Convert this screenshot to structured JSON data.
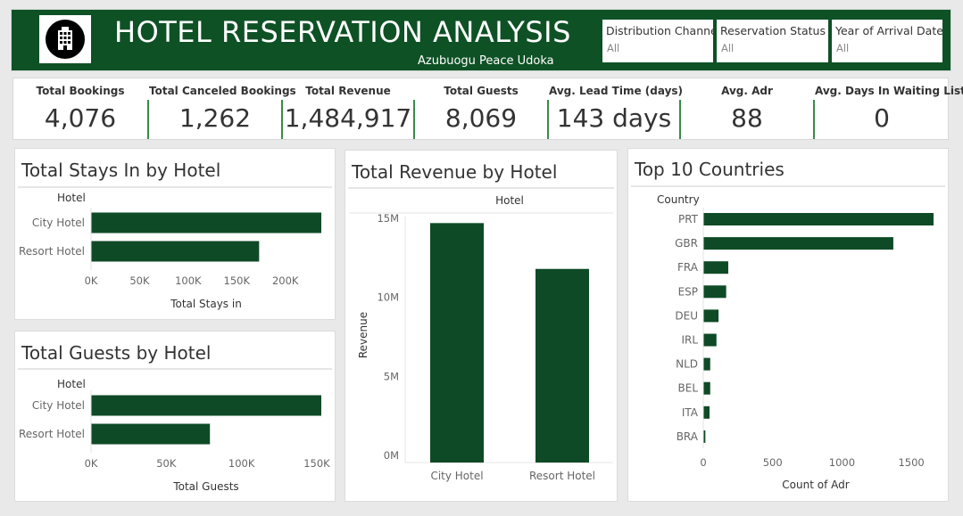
{
  "header": {
    "title": "HOTEL RESERVATION ANALYSIS",
    "author": "Azubuogu Peace Udoka",
    "logo_icon": "hotel-building-icon",
    "background": "#0e5125"
  },
  "filters": [
    {
      "label": "Distribution Channel",
      "value": "All"
    },
    {
      "label": "Reservation Status",
      "value": "All"
    },
    {
      "label": "Year of Arrival Date..",
      "value": "All"
    }
  ],
  "kpis": [
    {
      "label": "Total Bookings",
      "value": "4,076"
    },
    {
      "label": "Total Canceled Bookings",
      "value": "1,262"
    },
    {
      "label": "Total Revenue",
      "value": "1,484,917"
    },
    {
      "label": "Total Guests",
      "value": "8,069"
    },
    {
      "label": "Avg. Lead Time (days)",
      "value": "143 days"
    },
    {
      "label": "Avg. Adr",
      "value": "88"
    },
    {
      "label": "Avg. Days In Waiting List",
      "value": "0"
    }
  ],
  "chart_data": [
    {
      "type": "bar",
      "orientation": "horizontal",
      "title": "Total Stays In by Hotel",
      "category_header": "Hotel",
      "categories": [
        "City Hotel",
        "Resort Hotel"
      ],
      "values": [
        237000,
        173000
      ],
      "xlabel": "Total Stays in",
      "xlim": [
        0,
        237000
      ],
      "ticks": [
        0,
        50000,
        100000,
        150000,
        200000
      ],
      "tick_labels": [
        "0K",
        "50K",
        "100K",
        "150K",
        "200K"
      ],
      "color": "#0e4a26"
    },
    {
      "type": "bar",
      "orientation": "horizontal",
      "title": "Total Guests by Hotel",
      "category_header": "Hotel",
      "categories": [
        "City Hotel",
        "Resort Hotel"
      ],
      "values": [
        153000,
        79000
      ],
      "xlabel": "Total Guests",
      "xlim": [
        0,
        153000
      ],
      "ticks": [
        0,
        50000,
        100000,
        150000
      ],
      "tick_labels": [
        "0K",
        "50K",
        "100K",
        "150K"
      ],
      "color": "#0e4a26"
    },
    {
      "type": "bar",
      "orientation": "vertical",
      "title": "Total Revenue by Hotel",
      "category_header": "Hotel",
      "categories": [
        "City Hotel",
        "Resort Hotel"
      ],
      "values": [
        14700000,
        11800000
      ],
      "ylabel": "Revenue",
      "ylim": [
        0,
        15000000
      ],
      "ticks": [
        0,
        5000000,
        10000000,
        15000000
      ],
      "tick_labels": [
        "0M",
        "5M",
        "10M",
        "15M"
      ],
      "color": "#0e4a26"
    },
    {
      "type": "bar",
      "orientation": "horizontal",
      "title": "Top 10 Countries",
      "category_header": "Country",
      "categories": [
        "PRT",
        "GBR",
        "FRA",
        "ESP",
        "DEU",
        "IRL",
        "NLD",
        "BEL",
        "ITA",
        "BRA"
      ],
      "values": [
        1660,
        1370,
        180,
        165,
        110,
        95,
        50,
        50,
        45,
        15
      ],
      "xlabel": "Count of Adr",
      "xlim": [
        0,
        1660
      ],
      "ticks": [
        0,
        500,
        1000,
        1500
      ],
      "tick_labels": [
        "0",
        "500",
        "1000",
        "1500"
      ],
      "color": "#0e4a26"
    }
  ]
}
